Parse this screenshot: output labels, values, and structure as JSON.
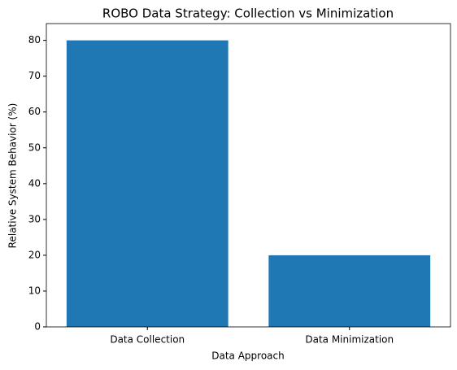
{
  "chart_data": {
    "type": "bar",
    "title": "ROBO Data Strategy: Collection vs Minimization",
    "x_label": "Data Approach",
    "y_label": "Relative System Behavior (%)",
    "categories": [
      "Data Collection",
      "Data Minimization"
    ],
    "values": [
      80,
      20
    ],
    "color": "#1f77b4",
    "ylim": [
      0,
      84
    ],
    "yticks": [
      0,
      10,
      20,
      30,
      40,
      50,
      60,
      70,
      80
    ],
    "grid": false
  }
}
